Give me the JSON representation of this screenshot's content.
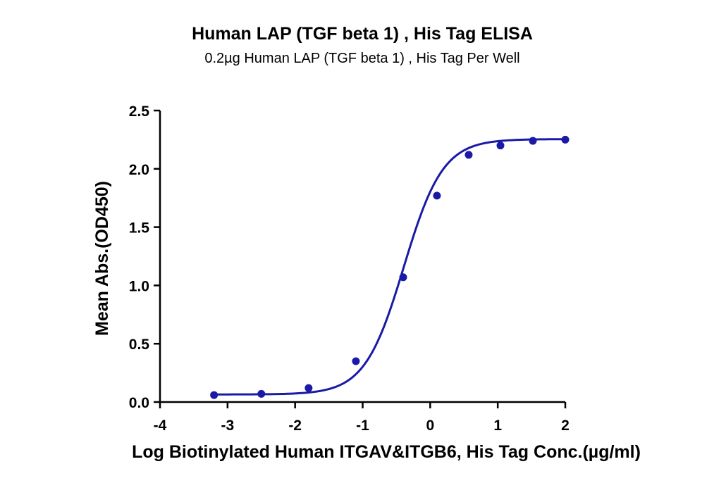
{
  "chart_data": {
    "type": "scatter",
    "title": "Human LAP (TGF beta 1) , His Tag ELISA",
    "subtitle": "0.2µg Human LAP (TGF beta 1) , His Tag Per Well",
    "xlabel": "Log Biotinylated Human ITGAV&ITGB6, His Tag Conc.(µg/ml)",
    "ylabel": "Mean Abs.(OD450)",
    "xlim": [
      -4,
      2
    ],
    "ylim": [
      0,
      2.5
    ],
    "xticks": [
      -4,
      -3,
      -2,
      -1,
      0,
      1,
      2
    ],
    "yticks": [
      0.0,
      0.5,
      1.0,
      1.5,
      2.0,
      2.5
    ],
    "xtick_labels": [
      "-4",
      "-3",
      "-2",
      "-1",
      "0",
      "1",
      "2"
    ],
    "ytick_labels": [
      "0.0",
      "0.5",
      "1.0",
      "1.5",
      "2.0",
      "2.5"
    ],
    "grid": false,
    "color": "#1a1aa6",
    "points": {
      "x": [
        -3.2,
        -2.5,
        -1.8,
        -1.1,
        -0.4,
        0.1,
        0.57,
        1.04,
        1.52,
        2.0
      ],
      "y": [
        0.06,
        0.07,
        0.12,
        0.35,
        1.07,
        1.77,
        2.12,
        2.2,
        2.24,
        2.25
      ]
    },
    "fit_curve": {
      "model": "4PL",
      "bottom": 0.065,
      "top": 2.255,
      "log_ec50": -0.39,
      "hill_slope": 1.5,
      "x_range": [
        -3.2,
        2.0
      ]
    }
  }
}
